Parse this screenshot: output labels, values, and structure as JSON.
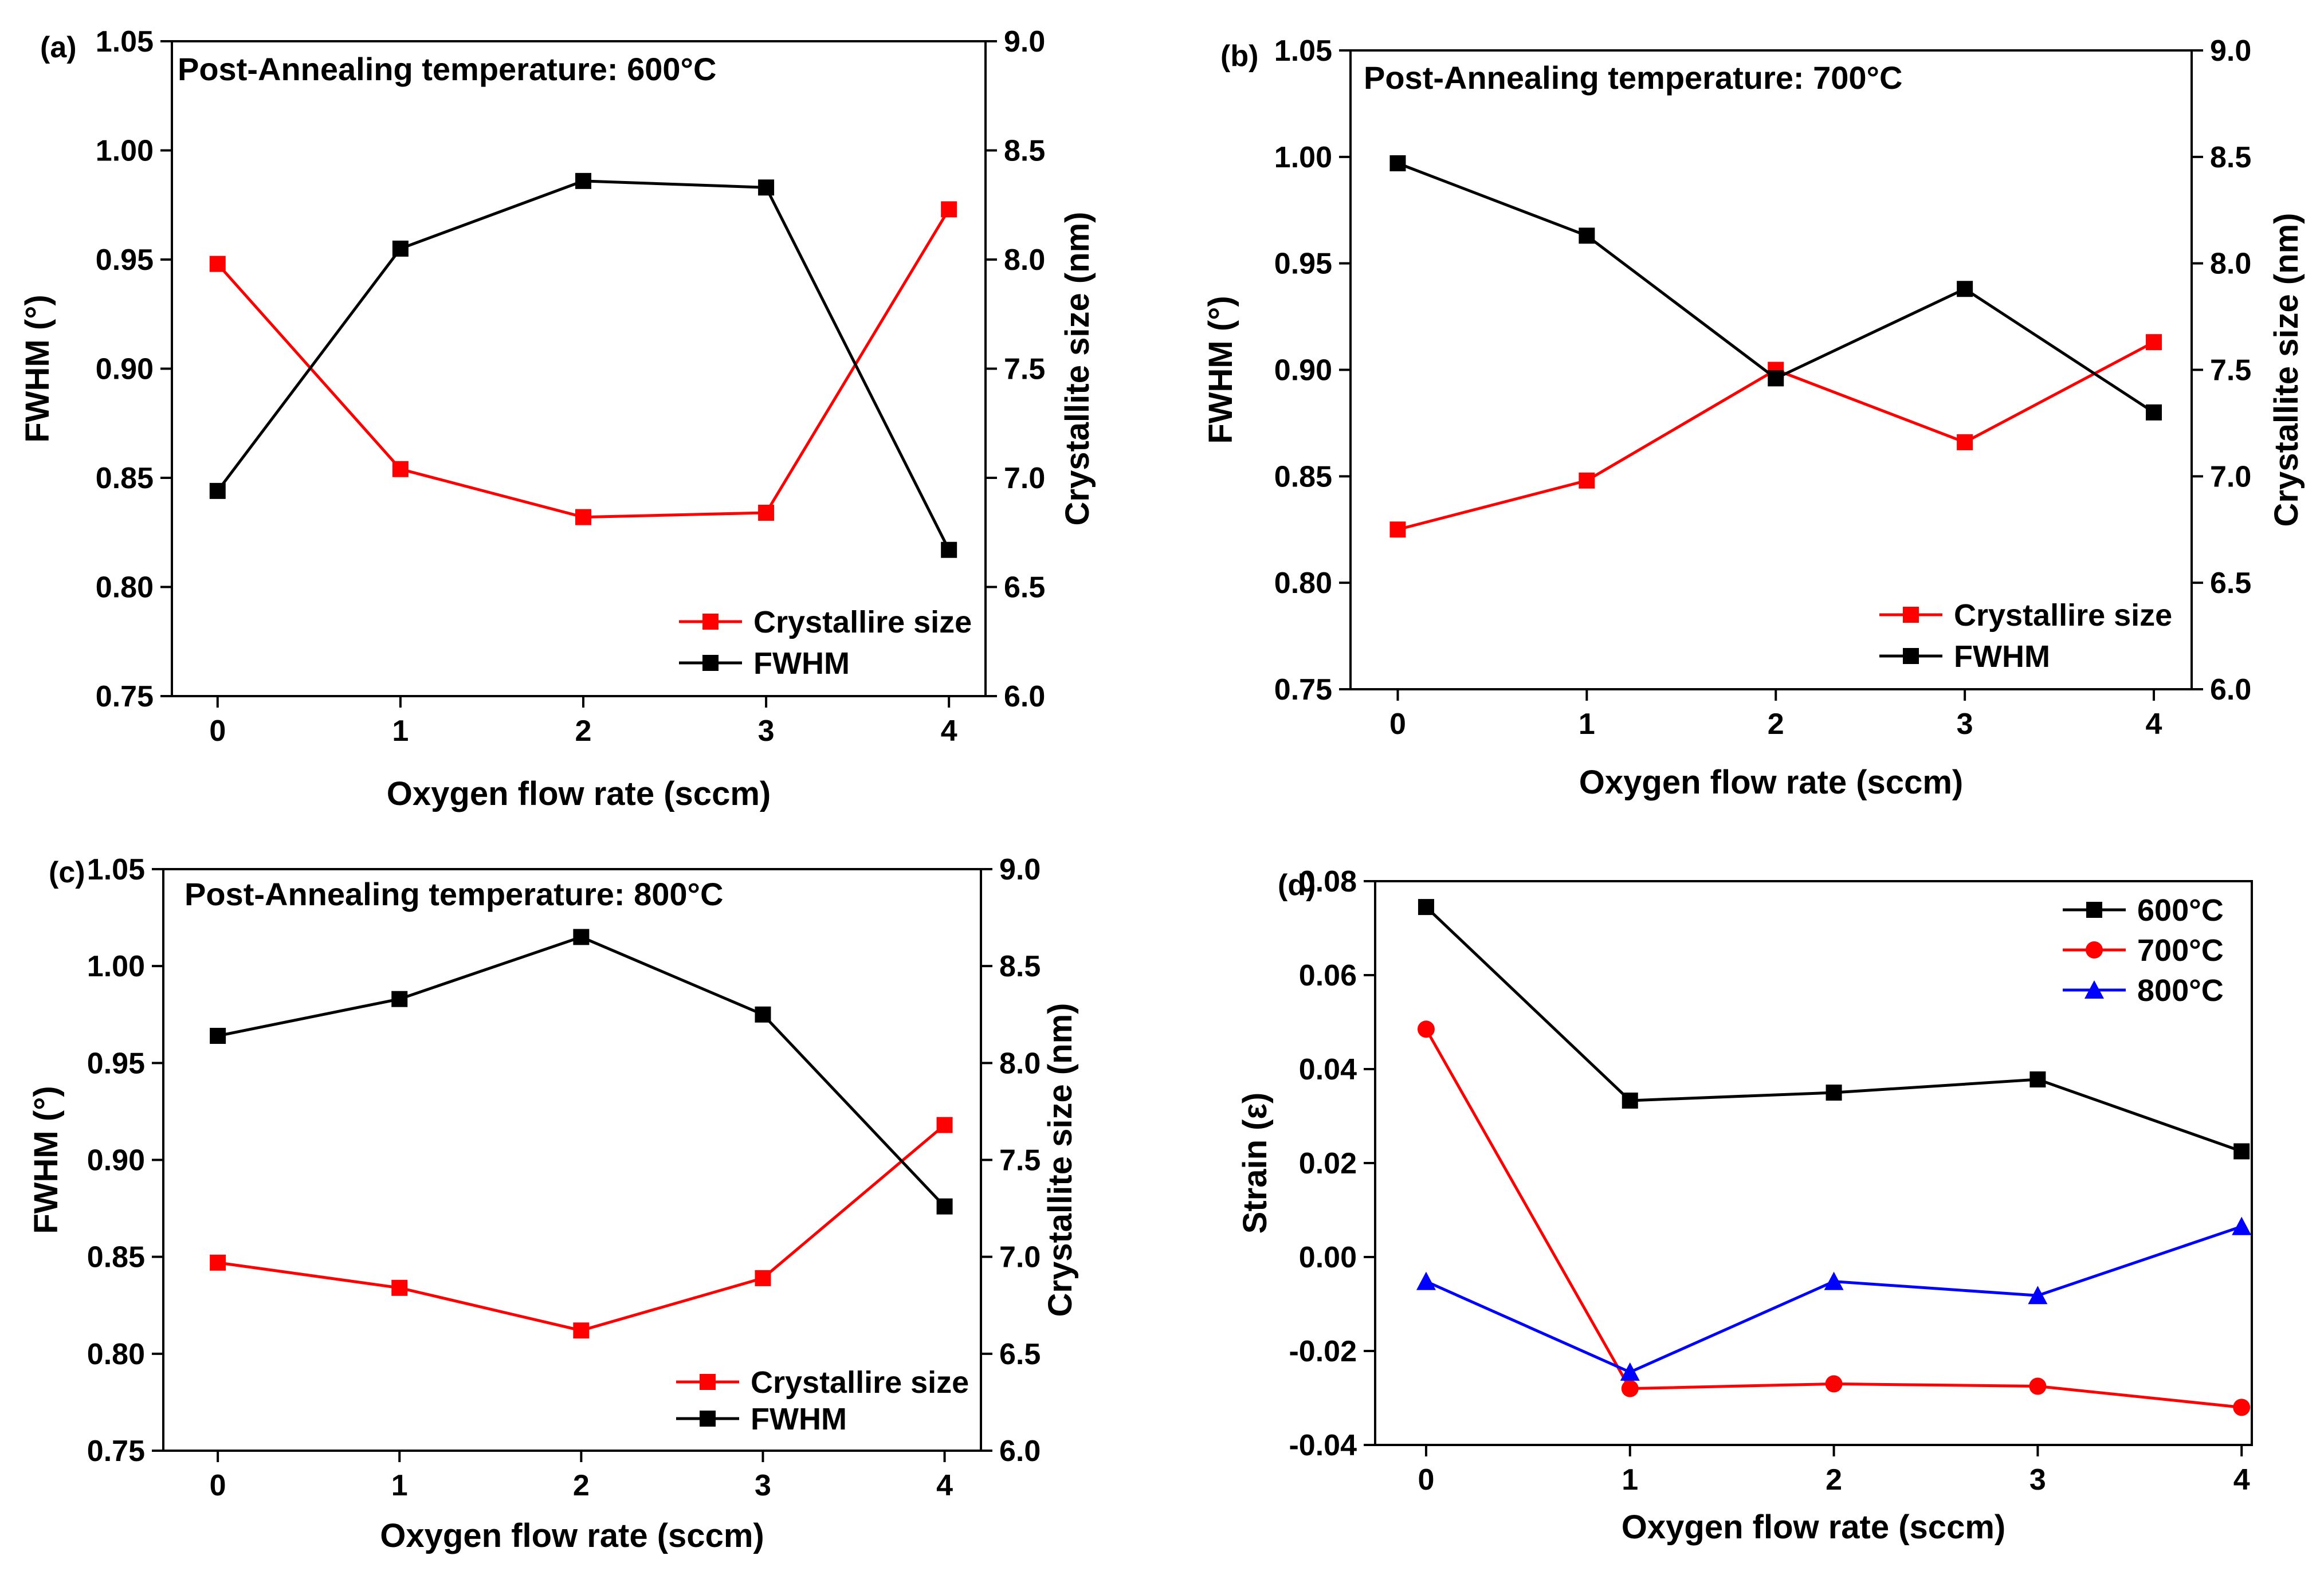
{
  "figure": {
    "colors": {
      "black": "#000000",
      "red": "#ff0000",
      "blue": "#0000ff"
    }
  },
  "chart_data": [
    {
      "panel": "(a)",
      "type": "line",
      "annotation": "Post-Annealing temperature: 600°C",
      "xlabel": "Oxygen flow rate (sccm)",
      "ylabel": "FWHM (°)",
      "y2label": "Crystallite size (nm)",
      "x": [
        0,
        1,
        2,
        3,
        4
      ],
      "xlim": [
        -0.25,
        4.2
      ],
      "xticks": [
        "0",
        "1",
        "2",
        "3",
        "4"
      ],
      "ylim": [
        0.75,
        1.05
      ],
      "yticks": [
        "0.75",
        "0.80",
        "0.85",
        "0.90",
        "0.95",
        "1.00",
        "1.05"
      ],
      "y2lim": [
        6.0,
        9.0
      ],
      "y2ticks": [
        "6.0",
        "6.5",
        "7.0",
        "7.5",
        "8.0",
        "8.5",
        "9.0"
      ],
      "legend_position": "bottom-right",
      "series": [
        {
          "name": "Crystallire size",
          "axis": "right",
          "marker": "square",
          "color": "#ff0000",
          "values": [
            7.98,
            7.04,
            6.82,
            6.84,
            8.23
          ]
        },
        {
          "name": "FWHM",
          "axis": "left",
          "marker": "square",
          "color": "#000000",
          "values": [
            0.844,
            0.955,
            0.986,
            0.983,
            0.817
          ]
        }
      ]
    },
    {
      "panel": "(b)",
      "type": "line",
      "annotation": "Post-Annealing temperature: 700°C",
      "xlabel": "Oxygen flow rate (sccm)",
      "ylabel": "FWHM (°)",
      "y2label": "Crystallite size (nm)",
      "x": [
        0,
        1,
        2,
        3,
        4
      ],
      "xlim": [
        -0.25,
        4.2
      ],
      "xticks": [
        "0",
        "1",
        "2",
        "3",
        "4"
      ],
      "ylim": [
        0.75,
        1.05
      ],
      "yticks": [
        "0.75",
        "0.80",
        "0.85",
        "0.90",
        "0.95",
        "1.00",
        "1.05"
      ],
      "y2lim": [
        6.0,
        9.0
      ],
      "y2ticks": [
        "6.0",
        "6.5",
        "7.0",
        "7.5",
        "8.0",
        "8.5",
        "9.0"
      ],
      "legend_position": "bottom-right",
      "series": [
        {
          "name": "Crystallire size",
          "axis": "right",
          "marker": "square",
          "color": "#ff0000",
          "values": [
            6.75,
            6.98,
            7.5,
            7.16,
            7.63
          ]
        },
        {
          "name": "FWHM",
          "axis": "left",
          "marker": "square",
          "color": "#000000",
          "values": [
            0.997,
            0.963,
            0.896,
            0.938,
            0.88
          ]
        }
      ]
    },
    {
      "panel": "(c)",
      "type": "line",
      "annotation": "Post-Annealing temperature: 800°C",
      "xlabel": "Oxygen flow rate (sccm)",
      "ylabel": "FWHM (°)",
      "y2label": "Crystallite size (nm)",
      "x": [
        0,
        1,
        2,
        3,
        4
      ],
      "xlim": [
        -0.3,
        4.2
      ],
      "xticks": [
        "0",
        "1",
        "2",
        "3",
        "4"
      ],
      "ylim": [
        0.75,
        1.05
      ],
      "yticks": [
        "0.75",
        "0.80",
        "0.85",
        "0.90",
        "0.95",
        "1.00",
        "1.05"
      ],
      "y2lim": [
        6.0,
        9.0
      ],
      "y2ticks": [
        "6.0",
        "6.5",
        "7.0",
        "7.5",
        "8.0",
        "8.5",
        "9.0"
      ],
      "legend_position": "bottom-right",
      "series": [
        {
          "name": "Crystallire size",
          "axis": "right",
          "marker": "square",
          "color": "#ff0000",
          "values": [
            6.97,
            6.84,
            6.62,
            6.89,
            7.68
          ]
        },
        {
          "name": "FWHM",
          "axis": "left",
          "marker": "square",
          "color": "#000000",
          "values": [
            0.964,
            0.983,
            1.015,
            0.975,
            0.876
          ]
        }
      ]
    },
    {
      "panel": "(d)",
      "type": "line",
      "annotation": "",
      "xlabel": "Oxygen flow rate (sccm)",
      "ylabel": "Strain (ε)",
      "x": [
        0,
        1,
        2,
        3,
        4
      ],
      "xlim": [
        -0.25,
        4.05
      ],
      "xticks": [
        "0",
        "1",
        "2",
        "3",
        "4"
      ],
      "ylim": [
        -0.04,
        0.08
      ],
      "yticks": [
        "-0.04",
        "-0.02",
        "0.00",
        "0.02",
        "0.04",
        "0.06",
        "0.08"
      ],
      "legend_position": "top-right",
      "series": [
        {
          "name": "600°C",
          "axis": "left",
          "marker": "square",
          "color": "#000000",
          "values": [
            0.0745,
            0.0333,
            0.035,
            0.0378,
            0.0225
          ]
        },
        {
          "name": "700°C",
          "axis": "left",
          "marker": "circle",
          "color": "#ff0000",
          "values": [
            0.0485,
            -0.028,
            -0.027,
            -0.0275,
            -0.032
          ]
        },
        {
          "name": "800°C",
          "axis": "left",
          "marker": "triangle",
          "color": "#0000ff",
          "values": [
            -0.0052,
            -0.0245,
            -0.0052,
            -0.0082,
            0.0065
          ]
        }
      ]
    }
  ]
}
